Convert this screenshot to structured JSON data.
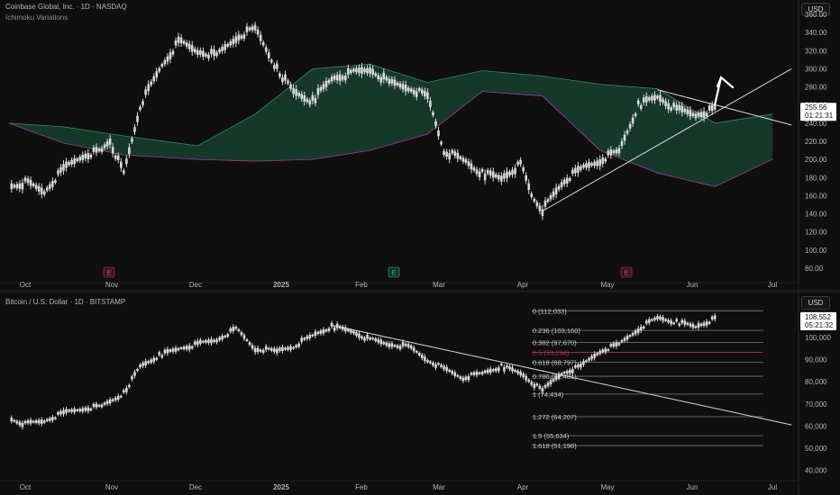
{
  "top": {
    "title": "Coinbase Global, Inc. · 1D · NASDAQ",
    "indicator": "Ichimoku Variations",
    "currency": "USD",
    "price_label": "255.56",
    "countdown": "01:21:31",
    "event_badges": [
      "E",
      "E",
      "E"
    ]
  },
  "bottom": {
    "title": "Bitcoin / U.S. Dollar · 1D · BITSTAMP",
    "currency": "USD",
    "price_label": "108,552",
    "countdown": "05:21:32"
  },
  "x_ticks": [
    "Oct",
    "Nov",
    "Dec",
    "2025",
    "Feb",
    "Mar",
    "Apr",
    "May",
    "Jun",
    "Jul"
  ],
  "colors": {
    "bg": "#0f0f0f",
    "bullish_cloud": "#1e5b44",
    "bearish_cloud": "#7b2a73",
    "fib_half": "#b0304a",
    "candle": "#d8d8d8"
  },
  "chart_data": [
    {
      "type": "line",
      "title": "Coinbase Global, Inc. · 1D · NASDAQ",
      "y_ticks": [
        80,
        100,
        120,
        140,
        160,
        180,
        200,
        220,
        240,
        260,
        280,
        300,
        320,
        340,
        360
      ],
      "y_tick_labels": [
        "80.00",
        "100.00",
        "120.00",
        "140.00",
        "160.00",
        "180.00",
        "200.00",
        "220.00",
        "240.00",
        "260.00",
        "280.00",
        "300.00",
        "320.00",
        "340.00",
        "360.00"
      ],
      "ylim": [
        68,
        370
      ],
      "x": [
        "Sep 25",
        "Oct 1",
        "Oct 8",
        "Oct 15",
        "Oct 22",
        "Oct 29",
        "Nov 1",
        "Nov 6",
        "Nov 12",
        "Nov 19",
        "Nov 26",
        "Dec 3",
        "Dec 10",
        "Dec 17",
        "Dec 24",
        "Jan 1",
        "Jan 7",
        "Jan 14",
        "Jan 21",
        "Jan 28",
        "Feb 4",
        "Feb 11",
        "Feb 18",
        "Feb 25",
        "Mar 3",
        "Mar 10",
        "Mar 17",
        "Mar 24",
        "Mar 31",
        "Apr 4",
        "Apr 8",
        "Apr 15",
        "Apr 22",
        "Apr 29",
        "May 6",
        "May 13",
        "May 20",
        "May 27",
        "Jun 3",
        "Jun 10"
      ],
      "close": [
        170,
        175,
        165,
        190,
        205,
        210,
        220,
        185,
        260,
        300,
        330,
        320,
        315,
        335,
        345,
        300,
        275,
        265,
        290,
        295,
        300,
        285,
        280,
        270,
        210,
        200,
        185,
        180,
        195,
        160,
        145,
        175,
        190,
        200,
        210,
        260,
        270,
        255,
        250,
        255.56
      ],
      "series": [
        {
          "name": "Coinbase Global, Inc.",
          "kind": "price"
        }
      ],
      "cloud": {
        "x": [
          "Sep 25",
          "Oct 15",
          "Nov 6",
          "Dec 3",
          "Dec 24",
          "Jan 14",
          "Feb 4",
          "Feb 25",
          "Mar 17",
          "Apr 8",
          "Apr 29",
          "May 20",
          "Jun 10",
          "Jul 1"
        ],
        "upper": [
          240,
          236,
          226,
          215,
          250,
          300,
          305,
          285,
          298,
          292,
          283,
          278,
          240,
          250
        ],
        "lower": [
          240,
          218,
          205,
          200,
          198,
          200,
          210,
          228,
          275,
          270,
          210,
          185,
          170,
          200
        ]
      },
      "trendlines": [
        {
          "from": [
            "Apr 8",
            143
          ],
          "to": [
            "Jul 8",
            300
          ]
        },
        {
          "from": [
            "May 20",
            277
          ],
          "to": [
            "Jul 8",
            238
          ]
        }
      ]
    },
    {
      "type": "line",
      "title": "Bitcoin / U.S. Dollar · 1D · BITSTAMP",
      "y_ticks": [
        40000,
        50000,
        60000,
        70000,
        80000,
        90000,
        100000
      ],
      "y_tick_labels": [
        "40,000",
        "50,000",
        "60,000",
        "70,000",
        "80,000",
        "90,000",
        "100,000"
      ],
      "ylim": [
        37000,
        115000
      ],
      "x": [
        "Sep 25",
        "Oct 1",
        "Oct 8",
        "Oct 15",
        "Oct 22",
        "Oct 29",
        "Nov 6",
        "Nov 12",
        "Nov 19",
        "Nov 26",
        "Dec 3",
        "Dec 10",
        "Dec 17",
        "Dec 24",
        "Jan 1",
        "Jan 7",
        "Jan 14",
        "Jan 21",
        "Jan 28",
        "Feb 4",
        "Feb 11",
        "Feb 18",
        "Feb 25",
        "Mar 3",
        "Mar 10",
        "Mar 17",
        "Mar 24",
        "Mar 31",
        "Apr 8",
        "Apr 15",
        "Apr 22",
        "Apr 29",
        "May 6",
        "May 13",
        "May 20",
        "May 27",
        "Jun 3",
        "Jun 10"
      ],
      "close": [
        63500,
        61000,
        62500,
        66000,
        68000,
        69000,
        75000,
        87000,
        92000,
        95000,
        97000,
        99000,
        104000,
        95000,
        94000,
        96000,
        101000,
        105000,
        103000,
        99000,
        97000,
        96000,
        90000,
        86000,
        82000,
        84000,
        87000,
        84000,
        76000,
        84000,
        87000,
        94000,
        97000,
        104000,
        109000,
        107000,
        105000,
        108552
      ],
      "fibonacci": {
        "levels": [
          {
            "ratio": "0",
            "price": "112,033"
          },
          {
            "ratio": "0.236",
            "price": "103,160"
          },
          {
            "ratio": "0.382",
            "price": "97,670"
          },
          {
            "ratio": "0.5",
            "price": "93,234"
          },
          {
            "ratio": "0.618",
            "price": "88,797"
          },
          {
            "ratio": "0.786",
            "price": "82,481"
          },
          {
            "ratio": "1",
            "price": "74,434"
          },
          {
            "ratio": "1.272",
            "price": "64,207"
          },
          {
            "ratio": "1.5",
            "price": "55,634"
          },
          {
            "ratio": "1.618",
            "price": "51,198"
          }
        ]
      },
      "trendlines": [
        {
          "from": [
            "Jan 21",
            105500
          ],
          "to": [
            "Jul 8",
            60500
          ]
        }
      ]
    }
  ]
}
